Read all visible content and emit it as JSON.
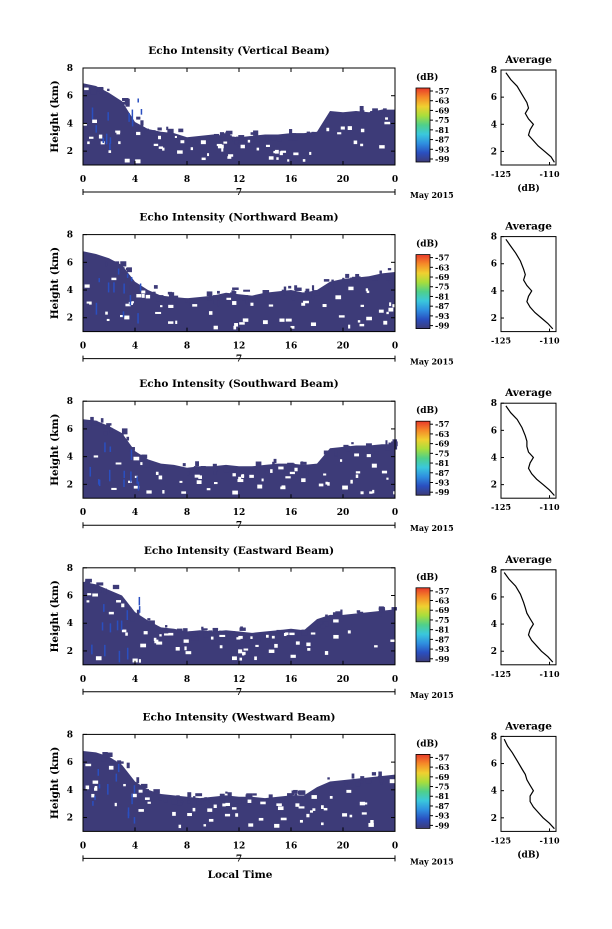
{
  "figure": {
    "date_label": "May 2015",
    "xlabel_bottom": "Local Time",
    "colorbar_unit": "(dB)",
    "colorbar_ticks": [
      "-57",
      "-63",
      "-69",
      "-75",
      "-81",
      "-87",
      "-93",
      "-99"
    ],
    "colors": [
      "#3d3b78",
      "#2a4fc0",
      "#2f8fe0",
      "#3ac8dc",
      "#4fd08a",
      "#a8de3c",
      "#f0d030",
      "#f58a28",
      "#e83a2a"
    ],
    "fill_color": "#3d3b78"
  },
  "chart_data": [
    {
      "type": "heatmap",
      "title": "Echo Intensity (Vertical Beam)",
      "ylabel": "Height (km)",
      "xlim": [
        0,
        24
      ],
      "ylim": [
        1,
        8
      ],
      "x_ticks": [
        "0",
        "4",
        "8",
        "12",
        "16",
        "20",
        "0"
      ],
      "x_sub_label": "7",
      "y_ticks": [
        "2",
        "4",
        "6",
        "8"
      ],
      "echo_top_km": [
        [
          0,
          6.9
        ],
        [
          1,
          6.7
        ],
        [
          2,
          6.2
        ],
        [
          3,
          5.6
        ],
        [
          4,
          4.1
        ],
        [
          5,
          3.6
        ],
        [
          6,
          3.4
        ],
        [
          7,
          3.3
        ],
        [
          8,
          3.0
        ],
        [
          9,
          3.1
        ],
        [
          10,
          3.2
        ],
        [
          11,
          3.1
        ],
        [
          12,
          3.0
        ],
        [
          13,
          3.1
        ],
        [
          14,
          3.2
        ],
        [
          15,
          3.2
        ],
        [
          16,
          3.3
        ],
        [
          17,
          3.3
        ],
        [
          18,
          3.4
        ],
        [
          19,
          4.9
        ],
        [
          20,
          4.8
        ],
        [
          21,
          4.9
        ],
        [
          22,
          4.8
        ],
        [
          23,
          5.0
        ],
        [
          24,
          5.0
        ]
      ],
      "profile": {
        "title": "Average",
        "xlabel": "(dB)",
        "xlim": [
          -125,
          -108
        ],
        "ylim": [
          1,
          8
        ],
        "x_ticks": [
          "-125",
          "-110"
        ],
        "y_ticks": [
          "2",
          "4",
          "6",
          "8"
        ],
        "x": [
          -108.5,
          -109.5,
          -111.5,
          -113.5,
          -115.0,
          -116.5,
          -116.0,
          -115.0,
          -116.5,
          -117.5,
          -116.5,
          -117.0,
          -118.5,
          -120.0,
          -122.0,
          -123.5
        ],
        "y": [
          1.2,
          1.6,
          2.0,
          2.4,
          2.8,
          3.2,
          3.6,
          4.0,
          4.4,
          4.8,
          5.2,
          5.6,
          6.2,
          6.8,
          7.3,
          7.8
        ]
      }
    },
    {
      "type": "heatmap",
      "title": "Echo Intensity (Northward Beam)",
      "ylabel": "Height (km)",
      "xlim": [
        0,
        24
      ],
      "ylim": [
        1,
        8
      ],
      "x_ticks": [
        "0",
        "4",
        "8",
        "12",
        "16",
        "20",
        "0"
      ],
      "x_sub_label": "7",
      "y_ticks": [
        "2",
        "4",
        "6",
        "8"
      ],
      "echo_top_km": [
        [
          0,
          6.8
        ],
        [
          1,
          6.6
        ],
        [
          2,
          6.3
        ],
        [
          3,
          5.8
        ],
        [
          4,
          4.6
        ],
        [
          5,
          4.0
        ],
        [
          6,
          3.6
        ],
        [
          7,
          3.5
        ],
        [
          8,
          3.4
        ],
        [
          9,
          3.5
        ],
        [
          10,
          3.6
        ],
        [
          11,
          3.8
        ],
        [
          12,
          3.7
        ],
        [
          13,
          3.6
        ],
        [
          14,
          3.8
        ],
        [
          15,
          3.9
        ],
        [
          16,
          4.0
        ],
        [
          17,
          3.8
        ],
        [
          18,
          4.0
        ],
        [
          19,
          4.6
        ],
        [
          20,
          4.8
        ],
        [
          21,
          4.9
        ],
        [
          22,
          5.0
        ],
        [
          23,
          5.2
        ],
        [
          24,
          5.3
        ]
      ],
      "profile": {
        "title": "Average",
        "xlabel": "",
        "xlim": [
          -125,
          -108
        ],
        "ylim": [
          1,
          8
        ],
        "x_ticks": [
          "-125",
          "-110"
        ],
        "y_ticks": [
          "2",
          "4",
          "6",
          "8"
        ],
        "x": [
          -109.0,
          -110.5,
          -112.5,
          -114.5,
          -116.0,
          -117.0,
          -116.5,
          -115.5,
          -117.0,
          -118.0,
          -117.5,
          -118.0,
          -119.0,
          -120.5,
          -122.0,
          -123.5
        ],
        "y": [
          1.2,
          1.6,
          2.0,
          2.4,
          2.8,
          3.2,
          3.6,
          4.0,
          4.4,
          4.8,
          5.2,
          5.6,
          6.2,
          6.8,
          7.3,
          7.8
        ]
      }
    },
    {
      "type": "heatmap",
      "title": "Echo Intensity (Southward Beam)",
      "ylabel": "Height (km)",
      "xlim": [
        0,
        24
      ],
      "ylim": [
        1,
        8
      ],
      "x_ticks": [
        "0",
        "4",
        "8",
        "12",
        "16",
        "20",
        "0"
      ],
      "x_sub_label": "7",
      "y_ticks": [
        "2",
        "4",
        "6",
        "8"
      ],
      "echo_top_km": [
        [
          0,
          6.7
        ],
        [
          1,
          6.6
        ],
        [
          2,
          6.2
        ],
        [
          3,
          5.7
        ],
        [
          4,
          4.4
        ],
        [
          5,
          3.8
        ],
        [
          6,
          3.5
        ],
        [
          7,
          3.4
        ],
        [
          8,
          3.2
        ],
        [
          9,
          3.3
        ],
        [
          10,
          3.3
        ],
        [
          11,
          3.4
        ],
        [
          12,
          3.3
        ],
        [
          13,
          3.3
        ],
        [
          14,
          3.4
        ],
        [
          15,
          3.5
        ],
        [
          16,
          3.5
        ],
        [
          17,
          3.4
        ],
        [
          18,
          3.5
        ],
        [
          19,
          4.6
        ],
        [
          20,
          4.7
        ],
        [
          21,
          4.8
        ],
        [
          22,
          4.8
        ],
        [
          23,
          4.9
        ],
        [
          24,
          4.9
        ]
      ],
      "profile": {
        "title": "Average",
        "xlabel": "",
        "xlim": [
          -125,
          -108
        ],
        "ylim": [
          1,
          8
        ],
        "x_ticks": [
          "-125",
          "-110"
        ],
        "y_ticks": [
          "2",
          "4",
          "6",
          "8"
        ],
        "x": [
          -108.5,
          -110.0,
          -112.0,
          -114.0,
          -115.5,
          -116.5,
          -116.0,
          -115.0,
          -116.5,
          -117.0,
          -117.0,
          -117.5,
          -118.5,
          -120.0,
          -122.0,
          -123.5
        ],
        "y": [
          1.2,
          1.6,
          2.0,
          2.4,
          2.8,
          3.2,
          3.6,
          4.0,
          4.4,
          4.8,
          5.2,
          5.6,
          6.2,
          6.8,
          7.3,
          7.8
        ]
      }
    },
    {
      "type": "heatmap",
      "title": "Echo Intensity (Eastward Beam)",
      "ylabel": "Height (km)",
      "xlim": [
        0,
        24
      ],
      "ylim": [
        1,
        8
      ],
      "x_ticks": [
        "0",
        "4",
        "8",
        "12",
        "16",
        "20",
        "0"
      ],
      "x_sub_label": "7",
      "y_ticks": [
        "2",
        "4",
        "6",
        "8"
      ],
      "echo_top_km": [
        [
          0,
          7.0
        ],
        [
          1,
          6.8
        ],
        [
          2,
          6.4
        ],
        [
          3,
          6.0
        ],
        [
          4,
          4.8
        ],
        [
          5,
          4.2
        ],
        [
          6,
          3.7
        ],
        [
          7,
          3.6
        ],
        [
          8,
          3.4
        ],
        [
          9,
          3.5
        ],
        [
          10,
          3.4
        ],
        [
          11,
          3.5
        ],
        [
          12,
          3.4
        ],
        [
          13,
          3.3
        ],
        [
          14,
          3.4
        ],
        [
          15,
          3.5
        ],
        [
          16,
          3.6
        ],
        [
          17,
          3.5
        ],
        [
          18,
          4.3
        ],
        [
          19,
          4.6
        ],
        [
          20,
          4.6
        ],
        [
          21,
          4.7
        ],
        [
          22,
          4.8
        ],
        [
          23,
          4.9
        ],
        [
          24,
          5.0
        ]
      ],
      "profile": {
        "title": "Average",
        "xlabel": "",
        "xlim": [
          -125,
          -108
        ],
        "ylim": [
          1,
          8
        ],
        "x_ticks": [
          "-125",
          "-110"
        ],
        "y_ticks": [
          "2",
          "4",
          "6",
          "8"
        ],
        "x": [
          -109.0,
          -110.5,
          -112.5,
          -114.0,
          -115.5,
          -116.5,
          -116.0,
          -115.0,
          -116.0,
          -117.0,
          -117.5,
          -118.0,
          -119.0,
          -120.5,
          -122.5,
          -124.0
        ],
        "y": [
          1.2,
          1.6,
          2.0,
          2.4,
          2.8,
          3.2,
          3.6,
          4.0,
          4.4,
          4.8,
          5.2,
          5.6,
          6.2,
          6.8,
          7.3,
          7.8
        ]
      }
    },
    {
      "type": "heatmap",
      "title": "Echo Intensity (Westward Beam)",
      "ylabel": "Height (km)",
      "xlim": [
        0,
        24
      ],
      "ylim": [
        1,
        8
      ],
      "x_ticks": [
        "0",
        "4",
        "8",
        "12",
        "16",
        "20",
        "0"
      ],
      "x_sub_label": "7",
      "y_ticks": [
        "2",
        "4",
        "6",
        "8"
      ],
      "echo_top_km": [
        [
          0,
          6.8
        ],
        [
          1,
          6.7
        ],
        [
          2,
          6.4
        ],
        [
          3,
          5.8
        ],
        [
          4,
          4.6
        ],
        [
          5,
          4.0
        ],
        [
          6,
          3.7
        ],
        [
          7,
          3.6
        ],
        [
          8,
          3.5
        ],
        [
          9,
          3.4
        ],
        [
          10,
          3.5
        ],
        [
          11,
          3.6
        ],
        [
          12,
          3.5
        ],
        [
          13,
          3.5
        ],
        [
          14,
          3.4
        ],
        [
          15,
          3.5
        ],
        [
          16,
          3.6
        ],
        [
          17,
          3.6
        ],
        [
          18,
          4.2
        ],
        [
          19,
          4.6
        ],
        [
          20,
          4.7
        ],
        [
          21,
          4.8
        ],
        [
          22,
          4.9
        ],
        [
          23,
          5.0
        ],
        [
          24,
          5.1
        ]
      ],
      "profile": {
        "title": "Average",
        "xlabel": "(dB)",
        "xlim": [
          -125,
          -108
        ],
        "ylim": [
          1,
          8
        ],
        "x_ticks": [
          "-125",
          "-110"
        ],
        "y_ticks": [
          "2",
          "4",
          "6",
          "8"
        ],
        "x": [
          -108.5,
          -110.0,
          -112.0,
          -113.5,
          -115.0,
          -116.0,
          -116.0,
          -115.0,
          -116.0,
          -117.0,
          -117.5,
          -118.5,
          -120.0,
          -121.5,
          -123.0,
          -124.0
        ],
        "y": [
          1.2,
          1.6,
          2.0,
          2.4,
          2.8,
          3.2,
          3.6,
          4.0,
          4.4,
          4.8,
          5.2,
          5.6,
          6.2,
          6.8,
          7.3,
          7.8
        ]
      }
    }
  ]
}
